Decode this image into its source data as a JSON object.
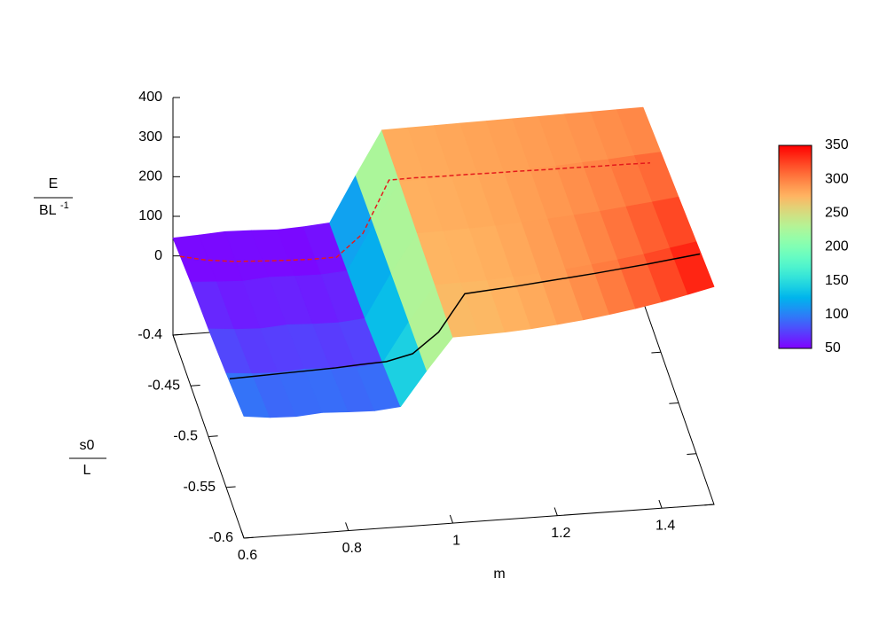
{
  "chart_data": {
    "type": "surface",
    "colormap": "rainbow",
    "xlabel": "m",
    "ylabel": {
      "numerator": "s0",
      "denominator": "L"
    },
    "zlabel": {
      "numerator": "E",
      "denominator": "BL",
      "denominator_exponent": "-1"
    },
    "xlim": [
      0.6,
      1.5
    ],
    "xticks": [
      0.6,
      0.8,
      1,
      1.2,
      1.4
    ],
    "ylim": [
      -0.6,
      -0.4
    ],
    "yticks": [
      -0.4,
      -0.45,
      -0.5,
      -0.55,
      -0.6
    ],
    "zlim": [
      -200,
      400
    ],
    "zticks": [
      0,
      100,
      200,
      300,
      400
    ],
    "cblim": [
      50,
      350
    ],
    "cbticks": [
      50,
      100,
      150,
      200,
      250,
      300,
      350
    ],
    "surface": {
      "m": [
        0.6,
        0.65,
        0.7,
        0.75,
        0.8,
        0.85,
        0.9,
        0.95,
        1.0,
        1.05,
        1.1,
        1.15,
        1.2,
        1.25,
        1.3,
        1.35,
        1.4,
        1.45,
        1.5
      ],
      "s0": [
        -0.4,
        -0.45,
        -0.5,
        -0.55,
        -0.6
      ],
      "z": [
        [
          45,
          48,
          52,
          50,
          47,
          50,
          55,
          170,
          280,
          281,
          282,
          283,
          284,
          285,
          286,
          287,
          288,
          289,
          290
        ],
        [
          62,
          58,
          55,
          60,
          58,
          57,
          62,
          175,
          278,
          279,
          280,
          282,
          284,
          286,
          289,
          293,
          296,
          301,
          305
        ],
        [
          72,
          66,
          63,
          68,
          65,
          64,
          70,
          180,
          275,
          276,
          278,
          280,
          284,
          288,
          293,
          298,
          305,
          312,
          320
        ],
        [
          88,
          82,
          80,
          84,
          82,
          80,
          86,
          185,
          273,
          274,
          275,
          279,
          283,
          289,
          296,
          304,
          313,
          324,
          335
        ],
        [
          108,
          100,
          98,
          103,
          100,
          98,
          104,
          190,
          270,
          271,
          273,
          277,
          283,
          290,
          299,
          309,
          321,
          335,
          350
        ]
      ]
    },
    "series": [
      {
        "color": "#e41a1c",
        "dash": true,
        "s0": -0.42,
        "values": [
          50,
          36,
          28,
          24,
          21,
          19,
          20,
          75,
          205,
          206,
          205,
          205,
          204,
          204,
          203,
          203,
          202,
          202,
          201
        ]
      },
      {
        "color": "#000000",
        "dash": false,
        "s0": -0.56,
        "values": [
          100,
          102,
          104,
          106,
          108,
          112,
          115,
          130,
          180,
          272,
          277,
          282,
          288,
          294,
          300,
          307,
          314,
          322,
          330
        ]
      }
    ]
  }
}
